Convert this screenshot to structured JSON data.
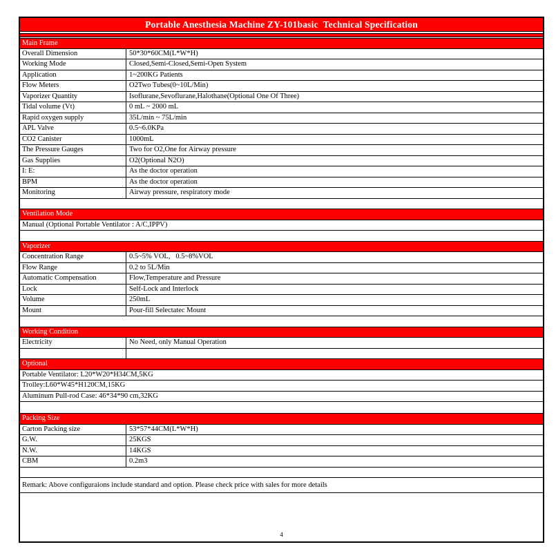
{
  "page": {
    "title": "Portable Anesthesia Machine ZY-101basic  Technical Specification",
    "page_number": "4",
    "remark": "Remark: Above configuraions include standard and option. Please check price with sales for more details"
  },
  "colors": {
    "accent_red": "#FF0000",
    "border": "#000000",
    "header_text": "#FFFFFF"
  },
  "sections": {
    "main_frame": {
      "heading": "Main Frame",
      "rows": [
        {
          "label": "Overall Dimension",
          "value": "50*30*60CM(L*W*H)"
        },
        {
          "label": "Working Mode",
          "value": "Closed,Semi-Closed,Semi-Open System"
        },
        {
          "label": "Application",
          "value": "1~200KG Patients"
        },
        {
          "label": "Flow Meters",
          "value": "O2Two Tubes(0~10L/Min)"
        },
        {
          "label": "Vaporizer Quantity",
          "value": "Isoflurane,Sevoflurane,Halothane(Optional One Of Three)"
        },
        {
          "label": "Tidal volume (Vt)",
          "value": "0 mL ~ 2000 mL"
        },
        {
          "label": "Rapid oxygen supply",
          "value": "35L/min ~ 75L/min"
        },
        {
          "label": "APL Valve",
          "value": "0.5~6.0KPa"
        },
        {
          "label": "CO2 Canister",
          "value": "1000mL"
        },
        {
          "label": "The Pressure Gauges",
          "value": "Two for O2,One for Airway pressure"
        },
        {
          "label": "Gas Supplies",
          "value": "O2(Optional N2O)"
        },
        {
          "label": "I: E:",
          "value": "As the doctor operation"
        },
        {
          "label": "BPM",
          "value": "As the doctor operation"
        },
        {
          "label": "Monitoring",
          "value": "Airway pressure, respiratory mode"
        }
      ]
    },
    "ventilation_mode": {
      "heading": "Ventilation Mode",
      "rows": [
        {
          "value": "Manual (Optional Portable Ventilator : A/C,IPPV)"
        }
      ]
    },
    "vaporizer": {
      "heading": "Vaporizer",
      "rows": [
        {
          "label": "Concentration Range",
          "value": "0.5~5% VOL,   0.5~8%VOL"
        },
        {
          "label": "Flow Range",
          "value": "0.2 to 5L/Min"
        },
        {
          "label": "Automatic Compensation",
          "value": "Flow,Temperature and Pressure"
        },
        {
          "label": "Lock",
          "value": "Self-Lock and Interlock"
        },
        {
          "label": "Volume",
          "value": "250mL"
        },
        {
          "label": "Mount",
          "value": "Pour-fill Selectatec Mount"
        }
      ]
    },
    "working_condition": {
      "heading": "Working Condition",
      "rows": [
        {
          "label": "Electricity",
          "value": "No Need, only Manual Operation"
        }
      ]
    },
    "optional": {
      "heading": "Optional",
      "rows": [
        {
          "value": "Portable Ventilator: L20*W20*H34CM,5KG"
        },
        {
          "value": "Trolley:L60*W45*H120CM,15KG"
        },
        {
          "value": "Aluminum Pull-rod Case: 46*34*90 cm,32KG"
        }
      ]
    },
    "packing_size": {
      "heading": "Packing Size",
      "rows": [
        {
          "label": "Carton Packing size",
          "value": "53*57*44CM(L*W*H)"
        },
        {
          "label": "G.W.",
          "value": "25KGS"
        },
        {
          "label": "N.W.",
          "value": "14KGS"
        },
        {
          "label": "CBM",
          "value": "0.2m3"
        }
      ]
    }
  }
}
